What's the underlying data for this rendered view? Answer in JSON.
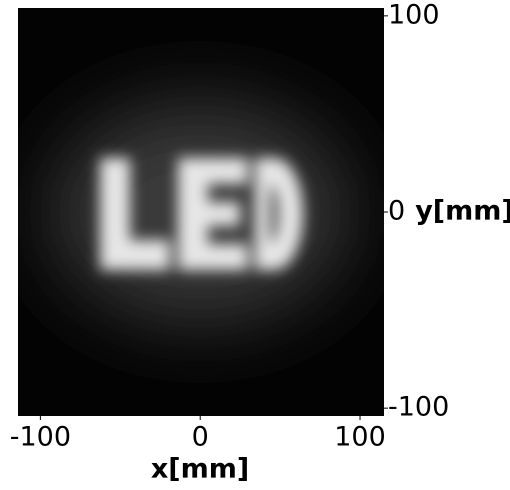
{
  "chart_data": {
    "type": "image",
    "xlabel": "x[mm]",
    "ylabel": "y[mm]",
    "xlim": [
      -114,
      115
    ],
    "ylim": [
      -104,
      104
    ],
    "xticks": [
      -100,
      0,
      100
    ],
    "yticks": [
      -100,
      0,
      100
    ]
  }
}
